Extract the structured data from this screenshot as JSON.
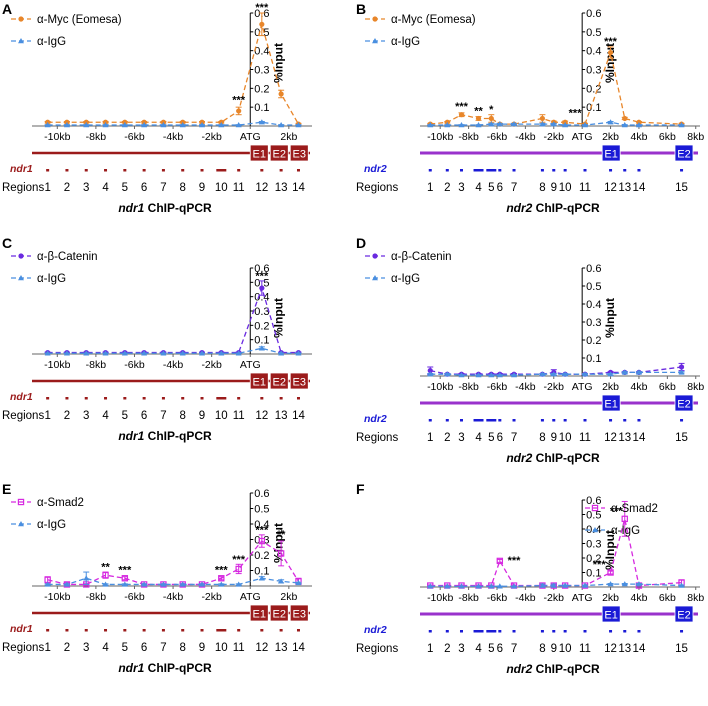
{
  "colors": {
    "myc": "#e8862a",
    "igg": "#4a8fe0",
    "catenin": "#6a2ae0",
    "smad2": "#d629e0",
    "ndr1_gene": "#9b1b1b",
    "ndr2_gene": "#9932cc",
    "ndr2_exon": "#1a1ad6",
    "ndr1_region": "#9b1b1b",
    "ndr2_region": "#1a1ad6"
  },
  "chart_data": [
    {
      "panel": "A",
      "type": "line",
      "gene": "ndr1",
      "ylabel": "%Input",
      "ylim": [
        0,
        0.6
      ],
      "yticks": [
        "0.1",
        "0.2",
        "0.3",
        "0.4",
        "0.5",
        "0.6"
      ],
      "x": [
        -10.5,
        -9.5,
        -8.5,
        -7.5,
        -6.5,
        -5.5,
        -4.5,
        -3.5,
        -2.5,
        -1.5,
        -0.6,
        0.6,
        1.6,
        2.5
      ],
      "xticks": [
        {
          "v": -10,
          "label": "-10kb"
        },
        {
          "v": -8,
          "label": "-8kb"
        },
        {
          "v": -6,
          "label": "-6kb"
        },
        {
          "v": -4,
          "label": "-4kb"
        },
        {
          "v": -2,
          "label": "-2kb"
        },
        {
          "v": 0,
          "label": "ATG"
        },
        {
          "v": 2,
          "label": "2kb"
        }
      ],
      "series": [
        {
          "name": "α-Myc (Eomesa)",
          "key": "myc",
          "marker": "circle",
          "values": [
            0.02,
            0.02,
            0.02,
            0.02,
            0.02,
            0.02,
            0.02,
            0.02,
            0.02,
            0.02,
            0.08,
            0.54,
            0.17,
            0.01
          ],
          "err": [
            0.004,
            0.004,
            0.004,
            0.004,
            0.004,
            0.004,
            0.004,
            0.004,
            0.004,
            0.004,
            0.02,
            0.06,
            0.02,
            0.004
          ]
        },
        {
          "name": "α-IgG",
          "key": "igg",
          "marker": "triangle",
          "values": [
            0.005,
            0.005,
            0.005,
            0.005,
            0.005,
            0.005,
            0.005,
            0.005,
            0.005,
            0.005,
            0.005,
            0.02,
            0.005,
            0.005
          ],
          "err": [
            0.002,
            0.002,
            0.002,
            0.002,
            0.002,
            0.002,
            0.002,
            0.002,
            0.002,
            0.002,
            0.002,
            0.004,
            0.002,
            0.002
          ]
        }
      ],
      "significance": [
        {
          "x": -0.6,
          "y": 0.12,
          "label": "***"
        },
        {
          "x": 0.6,
          "y": 0.61,
          "label": "***"
        }
      ],
      "exons": [
        "E1",
        "E2",
        "E3"
      ],
      "regions": [
        "1",
        "2",
        "3",
        "4",
        "5",
        "6",
        "7",
        "8",
        "9",
        "10",
        "11",
        "12",
        "13",
        "14"
      ],
      "regions_label": "Regions",
      "title_gene": "ndr1",
      "title_rest": "ChIP-qPCR",
      "legend_loc": "top-left"
    },
    {
      "panel": "B",
      "type": "line",
      "gene": "ndr2",
      "ylabel": "%Input",
      "ylim": [
        0,
        0.6
      ],
      "yticks": [
        "0.1",
        "0.2",
        "0.3",
        "0.4",
        "0.5",
        "0.6"
      ],
      "x": [
        -10.7,
        -9.5,
        -8.5,
        -7.3,
        -6.4,
        -5.8,
        -4.8,
        -2.8,
        -2,
        -1.2,
        0.2,
        2,
        3,
        4,
        7
      ],
      "xticks": [
        {
          "v": -10,
          "label": "-10kb"
        },
        {
          "v": -8,
          "label": "-8kb"
        },
        {
          "v": -6,
          "label": "-6kb"
        },
        {
          "v": -4,
          "label": "-4kb"
        },
        {
          "v": -2,
          "label": "-2kb"
        },
        {
          "v": 0,
          "label": "ATG"
        },
        {
          "v": 2,
          "label": "2kb"
        },
        {
          "v": 4,
          "label": "4kb"
        },
        {
          "v": 6,
          "label": "6kb"
        },
        {
          "v": 8,
          "label": "8kb"
        }
      ],
      "series": [
        {
          "name": "α-Myc (Eomesa)",
          "key": "myc",
          "marker": "circle",
          "values": [
            0.01,
            0.02,
            0.06,
            0.04,
            0.04,
            0.01,
            0.01,
            0.04,
            0.02,
            0.02,
            0.01,
            0.39,
            0.04,
            0.02,
            0.01
          ],
          "err": [
            0.004,
            0.004,
            0.01,
            0.01,
            0.02,
            0.004,
            0.004,
            0.02,
            0.006,
            0.006,
            0.004,
            0.03,
            0.006,
            0.004,
            0.004
          ]
        },
        {
          "name": "α-IgG",
          "key": "igg",
          "marker": "triangle",
          "values": [
            0.005,
            0.005,
            0.005,
            0.005,
            0.01,
            0.01,
            0.01,
            0.01,
            0.01,
            0.005,
            0.005,
            0.02,
            0.005,
            0.005,
            0.005
          ],
          "err": [
            0.002,
            0.002,
            0.002,
            0.002,
            0.004,
            0.004,
            0.004,
            0.004,
            0.004,
            0.002,
            0.002,
            0.004,
            0.002,
            0.002,
            0.002
          ]
        }
      ],
      "significance": [
        {
          "x": -8.5,
          "y": 0.085,
          "label": "***"
        },
        {
          "x": -7.3,
          "y": 0.06,
          "label": "**"
        },
        {
          "x": -6.4,
          "y": 0.07,
          "label": "*"
        },
        {
          "x": -0.5,
          "y": 0.05,
          "label": "***"
        },
        {
          "x": 2,
          "y": 0.43,
          "label": "***"
        }
      ],
      "exons": [
        "E1",
        "E2"
      ],
      "regions": [
        "1",
        "2",
        "3",
        "4",
        "5",
        "6",
        "7",
        "8",
        "9",
        "10",
        "11",
        "12",
        "13",
        "14",
        "15"
      ],
      "regions_label": "Regions",
      "title_gene": "ndr2",
      "title_rest": "ChIP-qPCR",
      "legend_loc": "top-left"
    },
    {
      "panel": "C",
      "type": "line",
      "gene": "ndr1",
      "ylabel": "%Input",
      "ylim": [
        0,
        0.6
      ],
      "yticks": [
        "0.1",
        "0.2",
        "0.3",
        "0.4",
        "0.5",
        "0.6"
      ],
      "x": [
        -10.5,
        -9.5,
        -8.5,
        -7.5,
        -6.5,
        -5.5,
        -4.5,
        -3.5,
        -2.5,
        -1.5,
        -0.6,
        0.6,
        1.6,
        2.5
      ],
      "xticks": [
        {
          "v": -10,
          "label": "-10kb"
        },
        {
          "v": -8,
          "label": "-8kb"
        },
        {
          "v": -6,
          "label": "-6kb"
        },
        {
          "v": -4,
          "label": "-4kb"
        },
        {
          "v": -2,
          "label": "-2kb"
        },
        {
          "v": 0,
          "label": "ATG"
        }
      ],
      "series": [
        {
          "name": "α-β-Catenin",
          "key": "catenin",
          "marker": "circle",
          "values": [
            0.01,
            0.01,
            0.01,
            0.01,
            0.01,
            0.01,
            0.01,
            0.01,
            0.01,
            0.01,
            0.01,
            0.46,
            0.01,
            0.01
          ],
          "err": [
            0.003,
            0.003,
            0.003,
            0.003,
            0.003,
            0.003,
            0.003,
            0.003,
            0.003,
            0.003,
            0.003,
            0.05,
            0.003,
            0.003
          ]
        },
        {
          "name": "α-IgG",
          "key": "igg",
          "marker": "triangle",
          "values": [
            0.005,
            0.005,
            0.005,
            0.005,
            0.005,
            0.005,
            0.005,
            0.005,
            0.005,
            0.005,
            0.005,
            0.04,
            0.005,
            0.005
          ],
          "err": [
            0.002,
            0.002,
            0.002,
            0.002,
            0.002,
            0.002,
            0.002,
            0.002,
            0.002,
            0.002,
            0.002,
            0.01,
            0.002,
            0.002
          ]
        }
      ],
      "significance": [
        {
          "x": 0.6,
          "y": 0.52,
          "label": "***"
        }
      ],
      "exons": [
        "E1",
        "E2",
        "E3"
      ],
      "regions": [
        "1",
        "2",
        "3",
        "4",
        "5",
        "6",
        "7",
        "8",
        "9",
        "10",
        "11",
        "12",
        "13",
        "14"
      ],
      "regions_label": "Regions",
      "title_gene": "ndr1",
      "title_rest": "ChIP-qPCR",
      "legend_loc": "top-left"
    },
    {
      "panel": "D",
      "type": "line",
      "gene": "ndr2",
      "ylabel": "%Input",
      "ylim": [
        0,
        0.6
      ],
      "yticks": [
        "0.1",
        "0.2",
        "0.3",
        "0.4",
        "0.5",
        "0.6"
      ],
      "x": [
        -10.7,
        -9.5,
        -8.5,
        -7.3,
        -6.4,
        -5.8,
        -4.8,
        -2.8,
        -2,
        -1.2,
        0.2,
        2,
        3,
        4,
        7
      ],
      "xticks": [
        {
          "v": -10,
          "label": "-10kb"
        },
        {
          "v": -8,
          "label": "-8kb"
        },
        {
          "v": -6,
          "label": "-6kb"
        },
        {
          "v": -4,
          "label": "-4kb"
        },
        {
          "v": -2,
          "label": "-2kb"
        },
        {
          "v": 0,
          "label": "ATG"
        },
        {
          "v": 2,
          "label": "2kb"
        },
        {
          "v": 4,
          "label": "4kb"
        },
        {
          "v": 6,
          "label": "6kb"
        },
        {
          "v": 8,
          "label": "8kb"
        }
      ],
      "series": [
        {
          "name": "α-β-Catenin",
          "key": "catenin",
          "marker": "circle",
          "values": [
            0.03,
            0.01,
            0.01,
            0.01,
            0.01,
            0.01,
            0.01,
            0.01,
            0.02,
            0.01,
            0.01,
            0.02,
            0.02,
            0.02,
            0.05
          ],
          "err": [
            0.02,
            0.004,
            0.004,
            0.004,
            0.004,
            0.004,
            0.004,
            0.004,
            0.015,
            0.004,
            0.004,
            0.004,
            0.004,
            0.004,
            0.02
          ]
        },
        {
          "name": "α-IgG",
          "key": "igg",
          "marker": "triangle",
          "values": [
            0.01,
            0.01,
            0.005,
            0.005,
            0.005,
            0.005,
            0.005,
            0.01,
            0.01,
            0.01,
            0.01,
            0.01,
            0.02,
            0.02,
            0.02
          ],
          "err": [
            0.004,
            0.004,
            0.002,
            0.002,
            0.002,
            0.002,
            0.002,
            0.004,
            0.004,
            0.004,
            0.004,
            0.004,
            0.004,
            0.004,
            0.004
          ]
        }
      ],
      "significance": [],
      "exons": [
        "E1",
        "E2"
      ],
      "regions": [
        "1",
        "2",
        "3",
        "4",
        "5",
        "6",
        "7",
        "8",
        "9",
        "10",
        "11",
        "12",
        "13",
        "14",
        "15"
      ],
      "regions_label": "Regions",
      "title_gene": "ndr2",
      "title_rest": "ChIP-qPCR",
      "legend_loc": "top-left"
    },
    {
      "panel": "E",
      "type": "line",
      "gene": "ndr1",
      "ylabel": "%Input",
      "ylim": [
        0,
        0.6
      ],
      "yticks": [
        "0.1",
        "0.2",
        "0.3",
        "0.4",
        "0.5",
        "0.6"
      ],
      "x": [
        -10.5,
        -9.5,
        -8.5,
        -7.5,
        -6.5,
        -5.5,
        -4.5,
        -3.5,
        -2.5,
        -1.5,
        -0.6,
        0.6,
        1.6,
        2.5
      ],
      "xticks": [
        {
          "v": -10,
          "label": "-10kb"
        },
        {
          "v": -8,
          "label": "-8kb"
        },
        {
          "v": -6,
          "label": "-6kb"
        },
        {
          "v": -4,
          "label": "-4kb"
        },
        {
          "v": -2,
          "label": "-2kb"
        },
        {
          "v": 0,
          "label": "ATG"
        },
        {
          "v": 2,
          "label": "2kb"
        }
      ],
      "series": [
        {
          "name": "α-Smad2",
          "key": "smad2",
          "marker": "square",
          "values": [
            0.04,
            0.01,
            0.01,
            0.07,
            0.05,
            0.01,
            0.01,
            0.01,
            0.01,
            0.05,
            0.11,
            0.29,
            0.21,
            0.03
          ],
          "err": [
            0.02,
            0.01,
            0.005,
            0.02,
            0.01,
            0.005,
            0.005,
            0.005,
            0.005,
            0.01,
            0.03,
            0.04,
            0.08,
            0.02
          ]
        },
        {
          "name": "α-IgG",
          "key": "igg",
          "marker": "triangle",
          "values": [
            0.01,
            0.01,
            0.05,
            0.01,
            0.01,
            0.01,
            0.01,
            0.01,
            0.01,
            0.01,
            0.01,
            0.05,
            0.03,
            0.02
          ],
          "err": [
            0.004,
            0.004,
            0.04,
            0.004,
            0.004,
            0.004,
            0.004,
            0.004,
            0.004,
            0.004,
            0.004,
            0.01,
            0.01,
            0.004
          ]
        }
      ],
      "significance": [
        {
          "x": -7.5,
          "y": 0.1,
          "label": "**"
        },
        {
          "x": -6.5,
          "y": 0.08,
          "label": "***"
        },
        {
          "x": -1.5,
          "y": 0.08,
          "label": "***"
        },
        {
          "x": -0.6,
          "y": 0.15,
          "label": "***"
        },
        {
          "x": 0.6,
          "y": 0.34,
          "label": "***"
        },
        {
          "x": 1.6,
          "y": 0.31,
          "label": "**"
        }
      ],
      "exons": [
        "E1",
        "E2",
        "E3"
      ],
      "regions": [
        "1",
        "2",
        "3",
        "4",
        "5",
        "6",
        "7",
        "8",
        "9",
        "10",
        "11",
        "12",
        "13",
        "14"
      ],
      "regions_label": "Regions",
      "title_gene": "ndr1",
      "title_rest": "ChIP-qPCR",
      "legend_loc": "top-left"
    },
    {
      "panel": "F",
      "type": "line",
      "gene": "ndr2",
      "ylabel": "%Input",
      "ylim": [
        0,
        0.6
      ],
      "yticks": [
        "0.1",
        "0.2",
        "0.3",
        "0.4",
        "0.5",
        "0.6"
      ],
      "x": [
        -10.7,
        -9.5,
        -8.5,
        -7.3,
        -6.4,
        -5.8,
        -4.8,
        -2.8,
        -2,
        -1.2,
        0.2,
        2,
        3,
        4,
        7
      ],
      "xticks": [
        {
          "v": -10,
          "label": "-10kb"
        },
        {
          "v": -8,
          "label": "-8kb"
        },
        {
          "v": -6,
          "label": "-6kb"
        },
        {
          "v": -4,
          "label": "-4kb"
        },
        {
          "v": -2,
          "label": "-2kb"
        },
        {
          "v": 0,
          "label": "ATG"
        },
        {
          "v": 2,
          "label": "2kb"
        },
        {
          "v": 4,
          "label": "4kb"
        },
        {
          "v": 6,
          "label": "6kb"
        },
        {
          "v": 8,
          "label": "8kb"
        }
      ],
      "series": [
        {
          "name": "α-Smad2",
          "key": "smad2",
          "marker": "square",
          "values": [
            0.01,
            0.01,
            0.01,
            0.01,
            0.01,
            0.18,
            0.01,
            0.01,
            0.01,
            0.01,
            0.01,
            0.1,
            0.47,
            0.01,
            0.03
          ],
          "err": [
            0.004,
            0.004,
            0.004,
            0.004,
            0.004,
            0.01,
            0.004,
            0.004,
            0.004,
            0.004,
            0.004,
            0.01,
            0.12,
            0.004,
            0.02
          ]
        },
        {
          "name": "α-IgG",
          "key": "igg",
          "marker": "triangle",
          "values": [
            0.005,
            0.005,
            0.005,
            0.005,
            0.005,
            0.005,
            0.005,
            0.01,
            0.01,
            0.01,
            0.01,
            0.02,
            0.02,
            0.02,
            0.01
          ],
          "err": [
            0.002,
            0.002,
            0.002,
            0.002,
            0.002,
            0.002,
            0.002,
            0.01,
            0.01,
            0.004,
            0.004,
            0.004,
            0.004,
            0.004,
            0.004
          ]
        }
      ],
      "significance": [
        {
          "x": -4.8,
          "y": 0.16,
          "label": "***"
        },
        {
          "x": 1.2,
          "y": 0.13,
          "label": "***"
        },
        {
          "x": 2.4,
          "y": 0.5,
          "label": "***"
        }
      ],
      "exons": [
        "E1",
        "E2"
      ],
      "regions": [
        "1",
        "2",
        "3",
        "4",
        "5",
        "6",
        "7",
        "8",
        "9",
        "10",
        "11",
        "12",
        "13",
        "14",
        "15"
      ],
      "regions_label": "Regions",
      "title_gene": "ndr2",
      "title_rest": "ChIP-qPCR",
      "legend_loc": "top-right"
    }
  ]
}
